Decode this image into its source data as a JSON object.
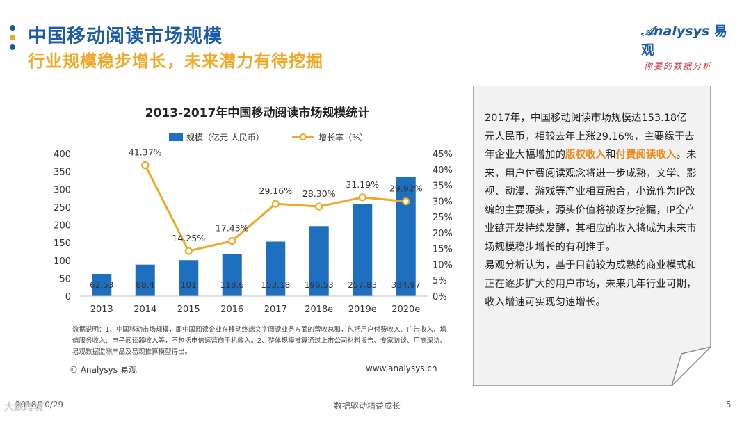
{
  "header": {
    "title": "中国移动阅读市场规模",
    "subtitle": "行业规模稳步增长，未来潜力有待挖掘",
    "dot_colors": [
      "#1b5aa6",
      "#f5a623",
      "#1b5aa6"
    ]
  },
  "logo": {
    "brand_en": "nalysys",
    "brand_cn": "易观",
    "slogan": "你要的数据分析"
  },
  "chart_data": {
    "type": "bar+line",
    "title": "2013-2017年中国移动阅读市场规模统计",
    "categories": [
      "2013",
      "2014",
      "2015",
      "2016",
      "2017",
      "2018e",
      "2019e",
      "2020e"
    ],
    "series": [
      {
        "name": "规模（亿元 人民币）",
        "type": "bar",
        "axis": "left",
        "color": "#1f6fbf",
        "values": [
          62.53,
          88.4,
          101,
          118.6,
          153.18,
          196.53,
          257.83,
          334.97
        ],
        "labels": [
          "62.53",
          "88.4",
          "101",
          "118.6",
          "153.18",
          "196.53",
          "257.83",
          "334.97"
        ]
      },
      {
        "name": "增长率（%）",
        "type": "line",
        "axis": "right",
        "color": "#f5a623",
        "values": [
          null,
          41.37,
          14.25,
          17.43,
          29.16,
          28.3,
          31.19,
          29.92
        ],
        "labels": [
          "",
          "41.37%",
          "14.25%",
          "17.43%",
          "29.16%",
          "28.30%",
          "31.19%",
          "29.92%"
        ]
      }
    ],
    "y_left": {
      "min": 0,
      "max": 400,
      "step": 50,
      "ticks": [
        "0",
        "50",
        "100",
        "150",
        "200",
        "250",
        "300",
        "350",
        "400"
      ]
    },
    "y_right": {
      "min": 0,
      "max": 45,
      "step": 5,
      "ticks": [
        "0%",
        "5%",
        "10%",
        "15%",
        "20%",
        "25%",
        "30%",
        "35%",
        "40%",
        "45%"
      ]
    },
    "grid": false,
    "legend": "top"
  },
  "chart_note": "数据说明：1、中国移动市场规模，即中国阅读企业在移动终端文字阅读业务方面的营收总和，包括用户付费收入、广告收入、增值服务收入、电子阅读器收入等，不包括电信运营商手机收入。2、整体规模推算通过上市公司材料报告、专家访谈、厂商深访、易观数据监测产品及易观推算模型得出。",
  "copyright": "© Analysys 易观",
  "website": "www.analysys.cn",
  "side_card": {
    "p1_parts": [
      "2017年，中国移动阅读市场规模达153.18亿元人民币，相较去年上涨29.16%，主要缘于去年企业大幅增加的",
      "版权收入",
      "和",
      "付费阅读收入",
      "。未来，用户付费阅读观念将进一步成熟，文学、影视、动漫、游戏等产业相互融合，小说作为IP改编的主要源头，源头价值将被逐步挖掘，IP全产业链开发持续发酵，其相应的收入将成为未来市场规模稳步增长的有利推手。"
    ],
    "p2": "易观分析认为，基于目前较为成熟的商业模式和正在逐步扩大的用户市场，未来几年行业可期，收入增速可实现匀速增长。"
  },
  "footer": {
    "date": "2018/10/29",
    "center": "数据驱动精益成长",
    "page": "5",
    "watermark": "大数跨境"
  }
}
